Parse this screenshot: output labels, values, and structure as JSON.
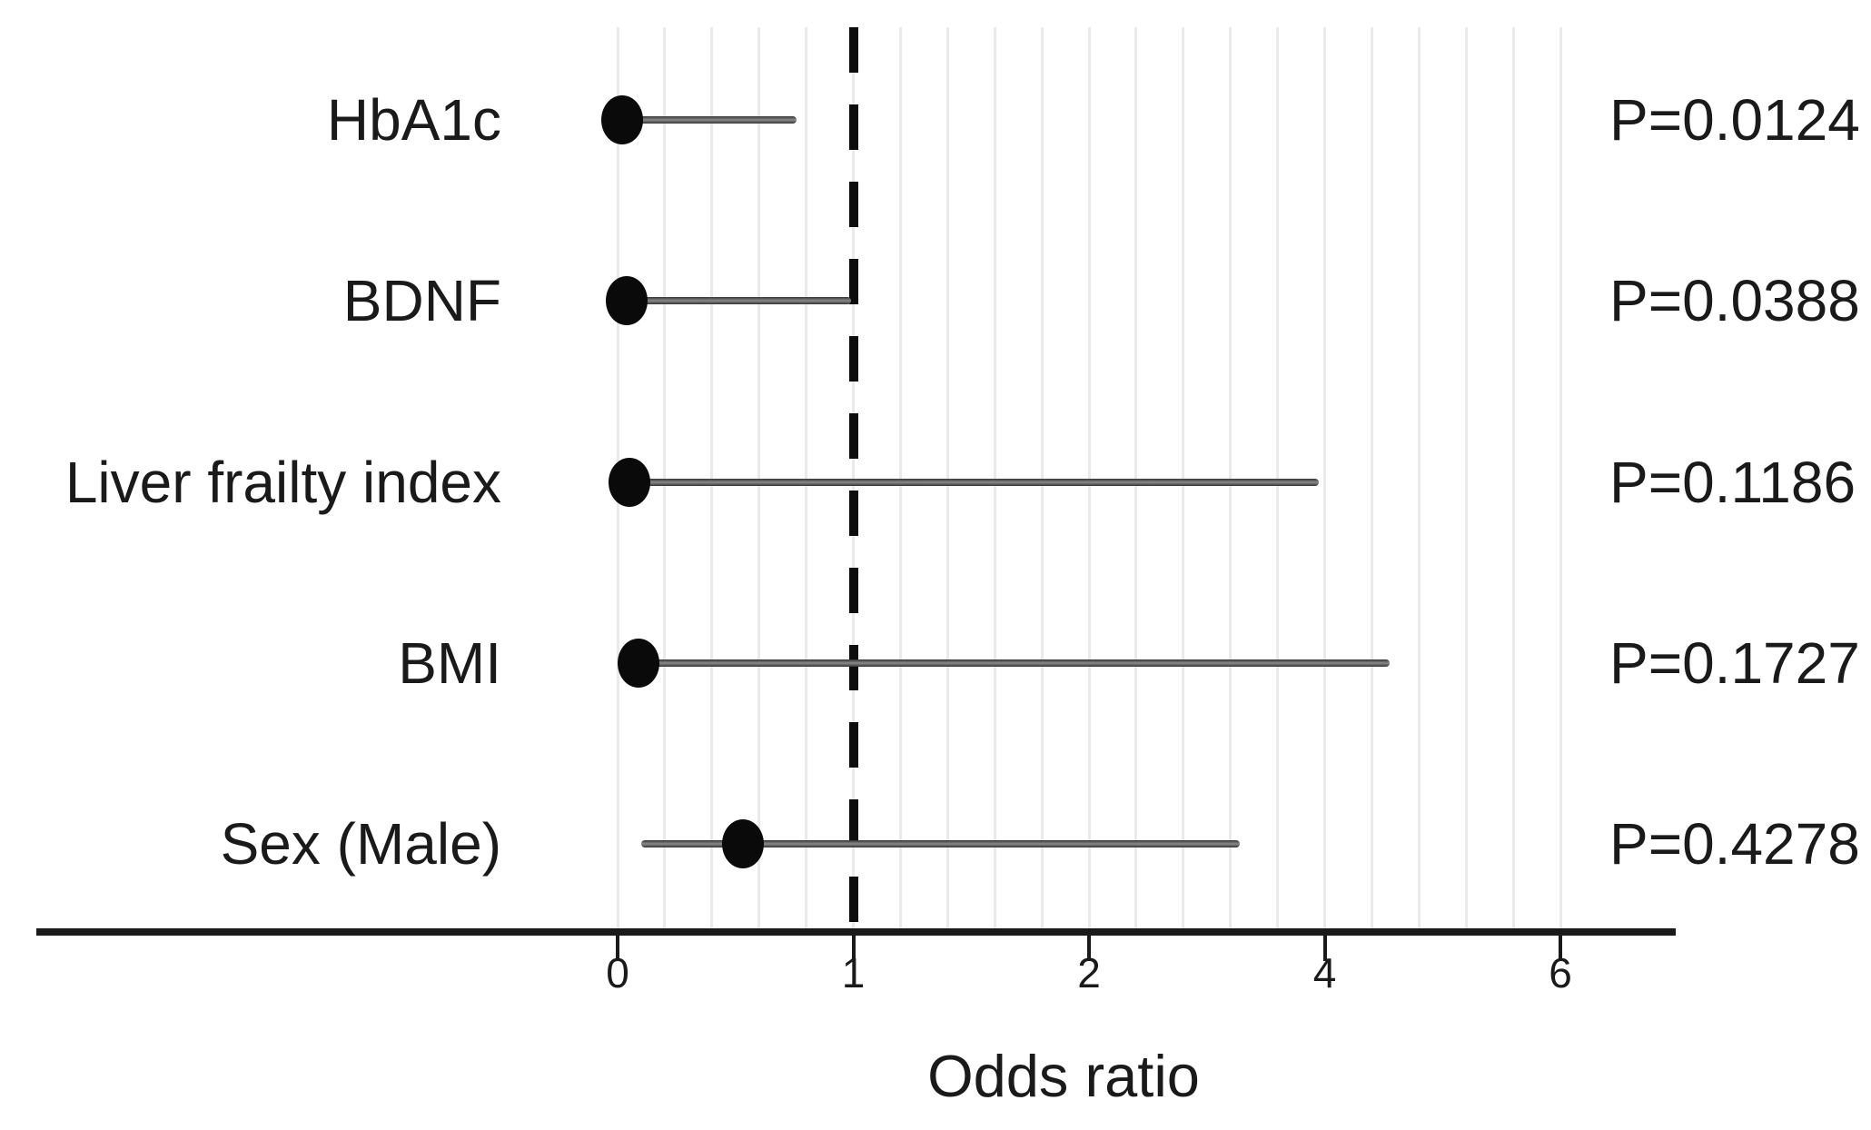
{
  "chart_data": {
    "type": "scatter",
    "variant": "forest-plot",
    "title": "",
    "xlabel": "Odds ratio",
    "x_ticks": [
      0,
      1,
      2,
      4,
      6
    ],
    "x_tick_labels": [
      "0",
      "1",
      "2",
      "4",
      "6"
    ],
    "x_axis_note": "ticks equally spaced in pixels; axis non-linear above 2",
    "reference_line_x": 1,
    "grid": "light vertical minor gridlines, 5 intervals per tick gap",
    "legend": null,
    "rows": [
      {
        "label": "HbA1c",
        "estimate": 0.02,
        "ci_low": 0.0,
        "ci_high": 0.76,
        "p_label": "P=0.0124"
      },
      {
        "label": "BDNF",
        "estimate": 0.04,
        "ci_low": 0.0,
        "ci_high": 0.99,
        "p_label": "P=0.0388"
      },
      {
        "label": "Liver frailty index",
        "estimate": 0.05,
        "ci_low": 0.0,
        "ci_high": 3.95,
        "p_label": "P=0.1186"
      },
      {
        "label": "BMI",
        "estimate": 0.09,
        "ci_low": 0.0,
        "ci_high": 4.55,
        "p_label": "P=0.1727"
      },
      {
        "label": "Sex (Male)",
        "estimate": 0.53,
        "ci_low": 0.1,
        "ci_high": 3.28,
        "p_label": "P=0.4278"
      }
    ]
  },
  "colors": {
    "background": "#ffffff",
    "dot": "#0a0a0a",
    "ci_line": "#4f4f4f",
    "gridline": "#eaeaea",
    "axis": "#1a1a1a",
    "reference_line": "#0d0d0d",
    "text": "#1a1a1a"
  }
}
